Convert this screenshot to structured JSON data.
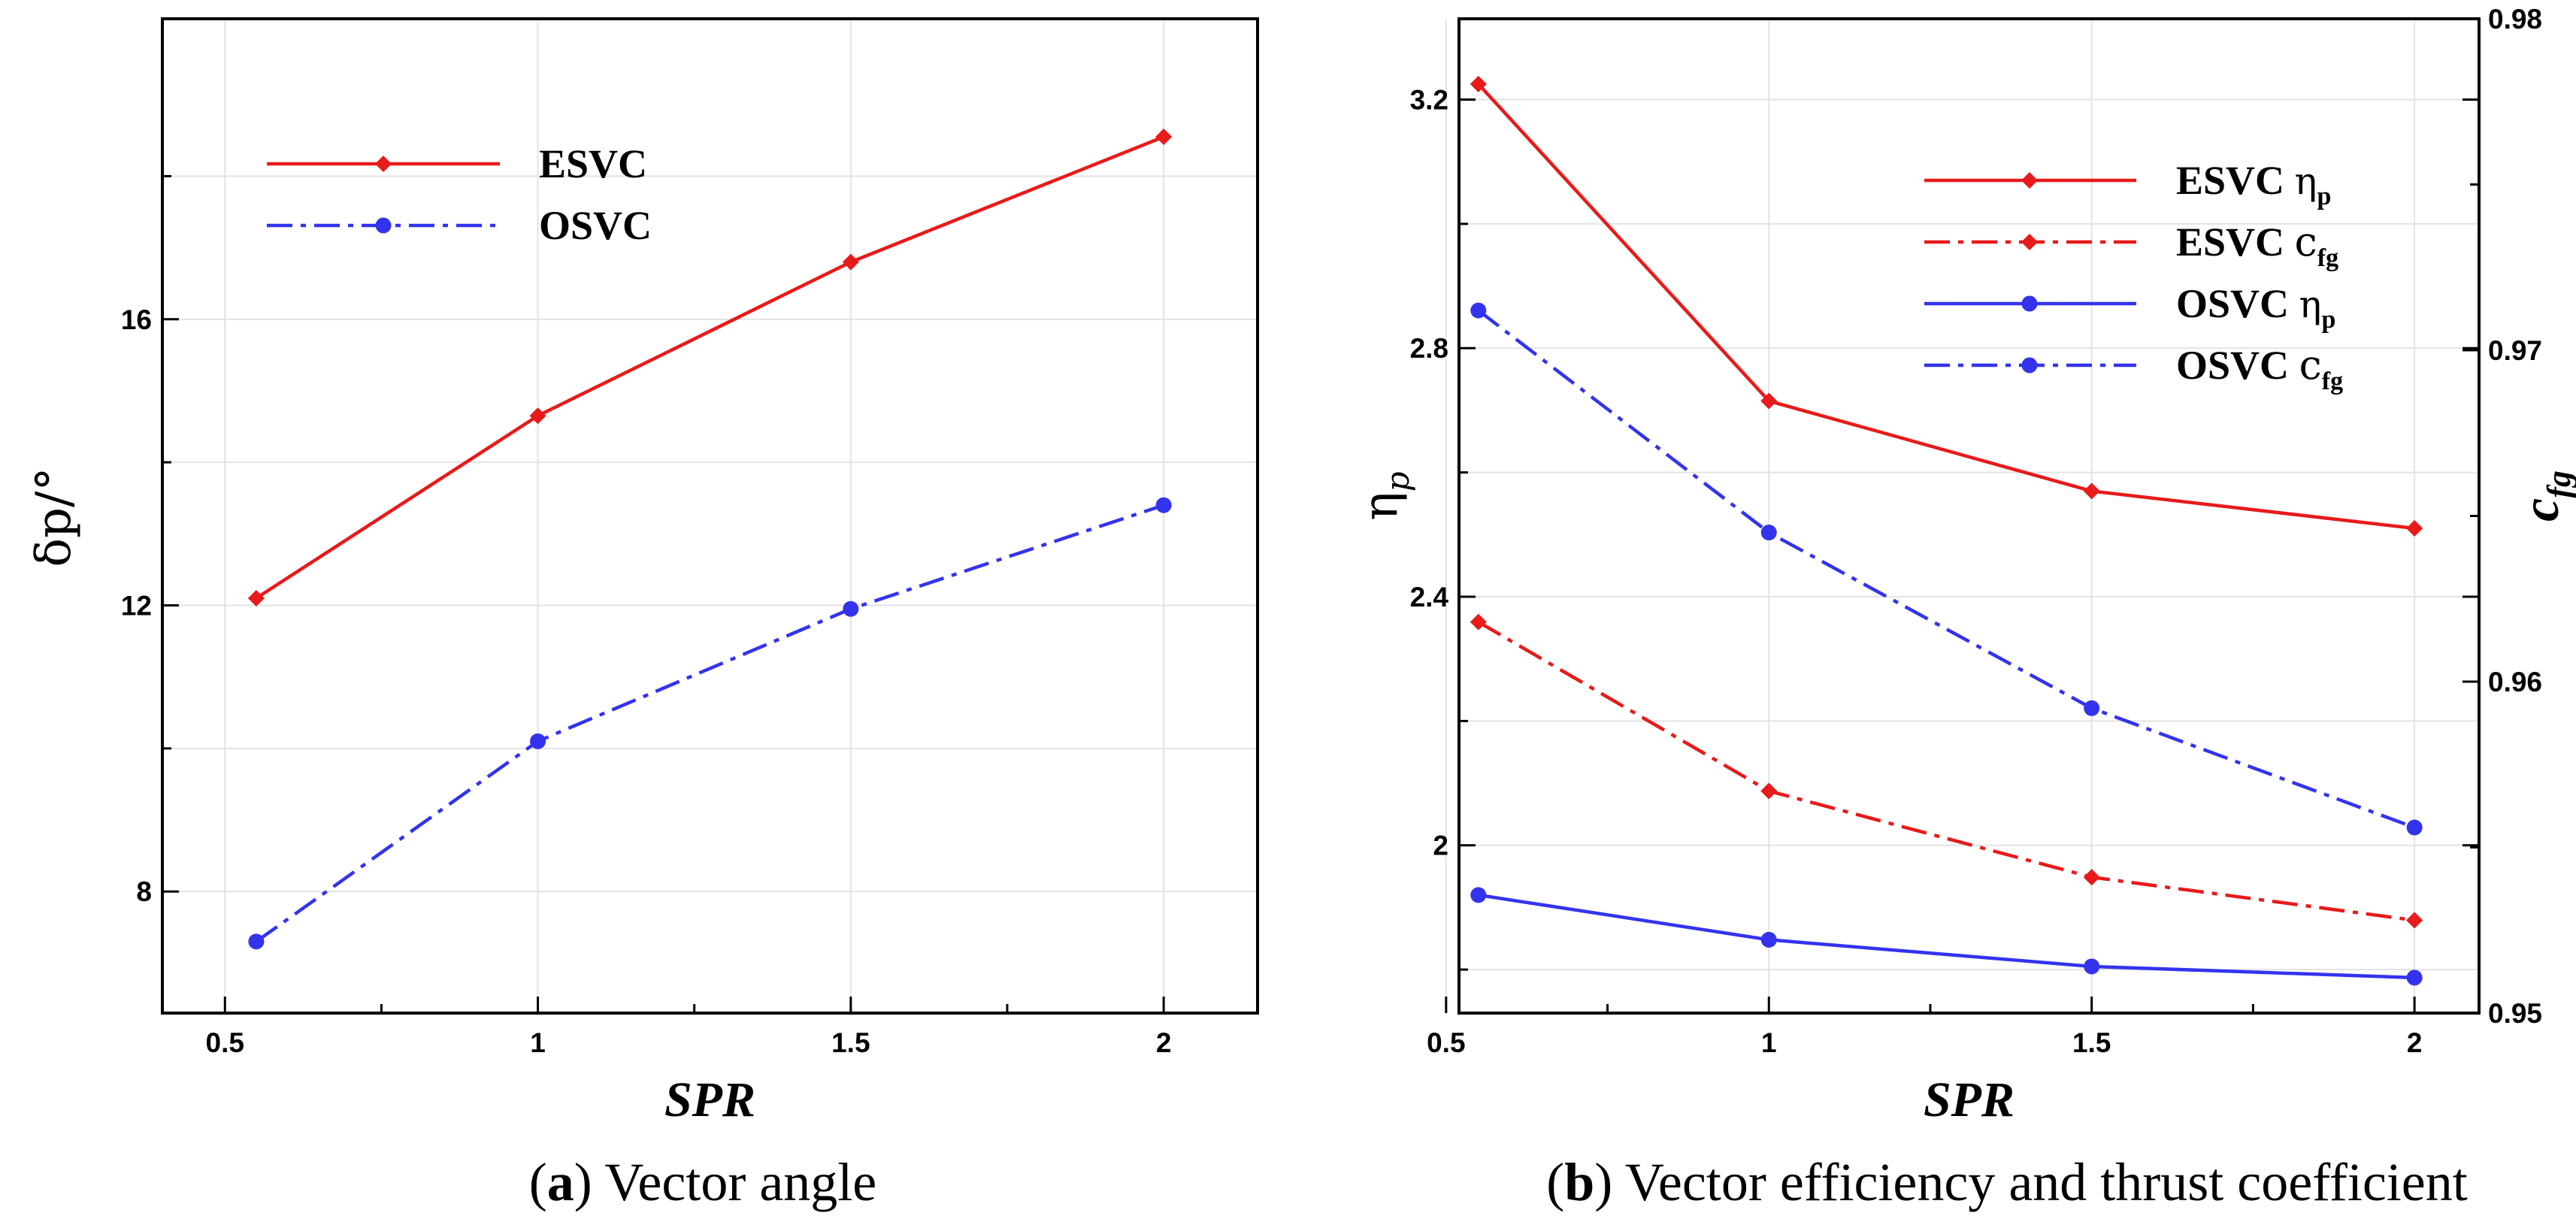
{
  "chart_data": [
    {
      "type": "line",
      "id": "a",
      "caption_label": "a",
      "caption_text": " Vector angle",
      "xlabel": "SPR",
      "ylabel": "δp/°",
      "xlim": [
        0.4,
        2.15
      ],
      "ylim": [
        6.3,
        20.2
      ],
      "xticks": [
        0.5,
        1,
        1.5,
        2
      ],
      "xtick_labels": [
        "0.5",
        "1",
        "1.5",
        "2"
      ],
      "yticks": [
        8,
        12,
        16
      ],
      "yticks_minor": [
        10,
        14,
        18
      ],
      "ytick_labels": [
        "8",
        "12",
        "16"
      ],
      "x": [
        0.55,
        1,
        1.5,
        2
      ],
      "series": [
        {
          "name": "ESVC",
          "color": "#e81a1a",
          "style": "solid",
          "marker": "diamond",
          "values": [
            12.1,
            14.65,
            16.8,
            18.55
          ]
        },
        {
          "name": "OSVC",
          "color": "#3333ee",
          "style": "dashdot",
          "marker": "circle",
          "values": [
            7.3,
            10.1,
            11.95,
            13.4
          ]
        }
      ],
      "legend": "top-left"
    },
    {
      "type": "line",
      "id": "b",
      "caption_label": "b",
      "caption_text": " Vector efficiency and thrust coefficient",
      "xlabel": "SPR",
      "ylabel": "ηp",
      "y2label": "cfg",
      "xlim": [
        0.52,
        2.1
      ],
      "ylim": [
        1.73,
        3.33
      ],
      "y2lim": [
        0.95,
        0.98
      ],
      "xticks": [
        0.5,
        1,
        1.5,
        2
      ],
      "xtick_labels": [
        "0.5",
        "1",
        "1.5",
        "2"
      ],
      "yticks": [
        2,
        2.4,
        2.8,
        3.2
      ],
      "yticks_minor": [
        1.8,
        2.2,
        2.6,
        3.0
      ],
      "ytick_labels": [
        "2",
        "2.4",
        "2.8",
        "3.2"
      ],
      "y2ticks": [
        0.95,
        0.96,
        0.97,
        0.98
      ],
      "y2ticks_minor": [
        0.955,
        0.965,
        0.975
      ],
      "y2tick_labels": [
        "0.95",
        "0.96",
        "0.97",
        "0.98"
      ],
      "x": [
        0.55,
        1,
        1.5,
        2
      ],
      "series": [
        {
          "name": "ESVC",
          "sym": "η",
          "sub": "p",
          "color": "#e81a1a",
          "style": "solid",
          "marker": "diamond",
          "axis": "left",
          "values": [
            3.225,
            2.715,
            2.57,
            2.51
          ]
        },
        {
          "name": "ESVC",
          "sym": "c",
          "sub": "fg",
          "color": "#e81a1a",
          "style": "dashdot",
          "marker": "diamond",
          "axis": "right",
          "values": [
            0.9618,
            0.9567,
            0.9541,
            0.9528
          ]
        },
        {
          "name": "OSVC",
          "sym": "η",
          "sub": "p",
          "color": "#3333ee",
          "style": "solid",
          "marker": "circle",
          "axis": "left",
          "values": [
            1.92,
            1.848,
            1.805,
            1.787
          ]
        },
        {
          "name": "OSVC",
          "sym": "c",
          "sub": "fg",
          "color": "#3333ee",
          "style": "dashdot",
          "marker": "circle",
          "axis": "right",
          "values": [
            0.9712,
            0.9645,
            0.9592,
            0.9556
          ]
        }
      ],
      "legend": "top-right"
    }
  ]
}
